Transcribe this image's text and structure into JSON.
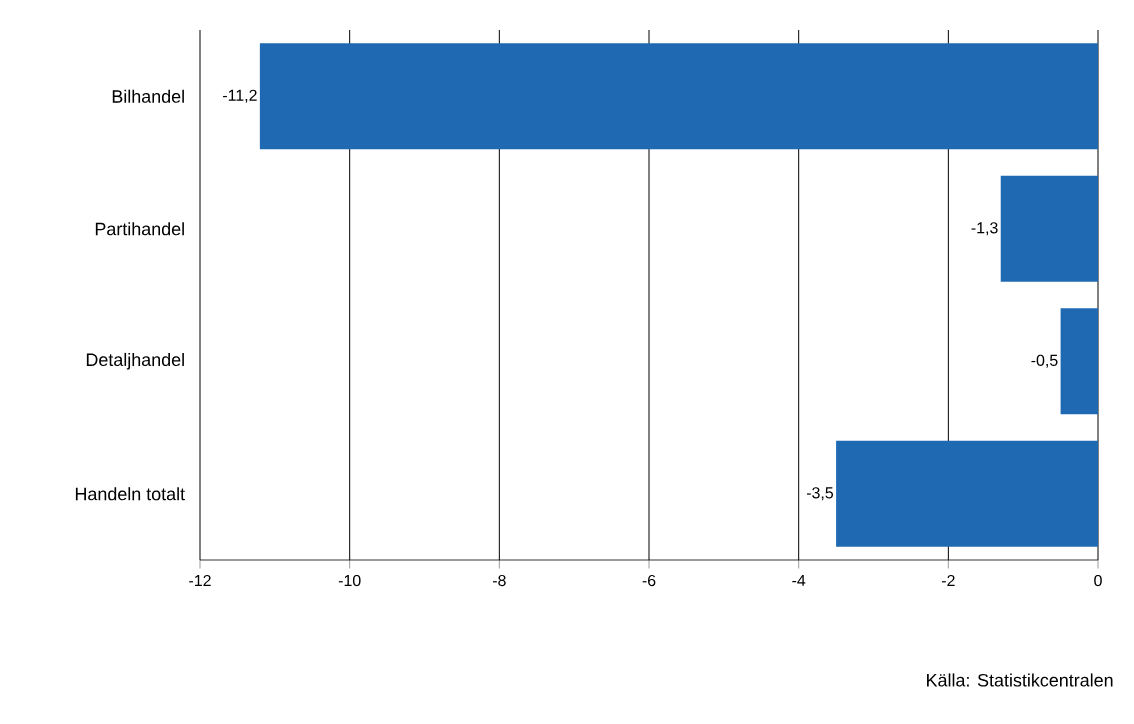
{
  "chart_data": {
    "type": "bar",
    "orientation": "horizontal",
    "categories": [
      "Bilhandel",
      "Partihandel",
      "Detaljhandel",
      "Handeln totalt"
    ],
    "values": [
      -11.2,
      -1.3,
      -0.5,
      -3.5
    ],
    "value_labels": [
      "-11,2",
      "-1,3",
      "-0,5",
      "-3,5"
    ],
    "color": "#1f69b3",
    "xlim": [
      -12,
      0
    ],
    "xticks": [
      -12,
      -10,
      -8,
      -6,
      -4,
      -2,
      0
    ],
    "grid": "x",
    "annotations": [
      "Källa:  Statistikcentralen"
    ]
  }
}
